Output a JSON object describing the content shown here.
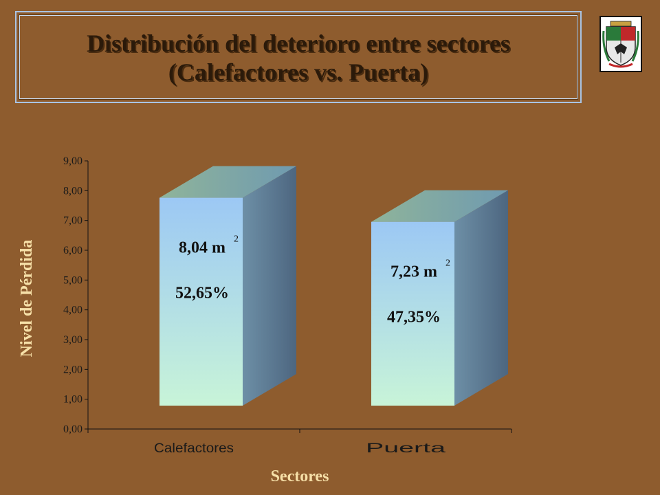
{
  "slide": {
    "title_line1": "Distribución del deterioro entre sectores",
    "title_line2": "(Calefactores vs. Puerta)"
  },
  "logo": {
    "icon": "coat-of-arms-icon"
  },
  "colors": {
    "background": "#8e5c2e",
    "axis_title": "#f6e0a8",
    "bar_front_top": "#9cc8f4",
    "bar_front_bottom": "#c8f4d8",
    "bar_side": "#5a7890",
    "bar_top": "#7ea890"
  },
  "chart_data": {
    "type": "bar",
    "categories": [
      "Calefactores",
      "Puerta"
    ],
    "values": [
      8.04,
      7.23
    ],
    "value_labels": [
      "8,04 m",
      "7,23 m"
    ],
    "value_label_superscript": "2",
    "percent_labels": [
      "52,65%",
      "47,35%"
    ],
    "xlabel": "Sectores",
    "ylabel": "Nivel de Pérdida",
    "ylim": [
      0,
      9
    ],
    "yticks": [
      "0,00",
      "1,00",
      "2,00",
      "3,00",
      "4,00",
      "5,00",
      "6,00",
      "7,00",
      "8,00",
      "9,00"
    ],
    "grid": false,
    "style": "3d"
  }
}
